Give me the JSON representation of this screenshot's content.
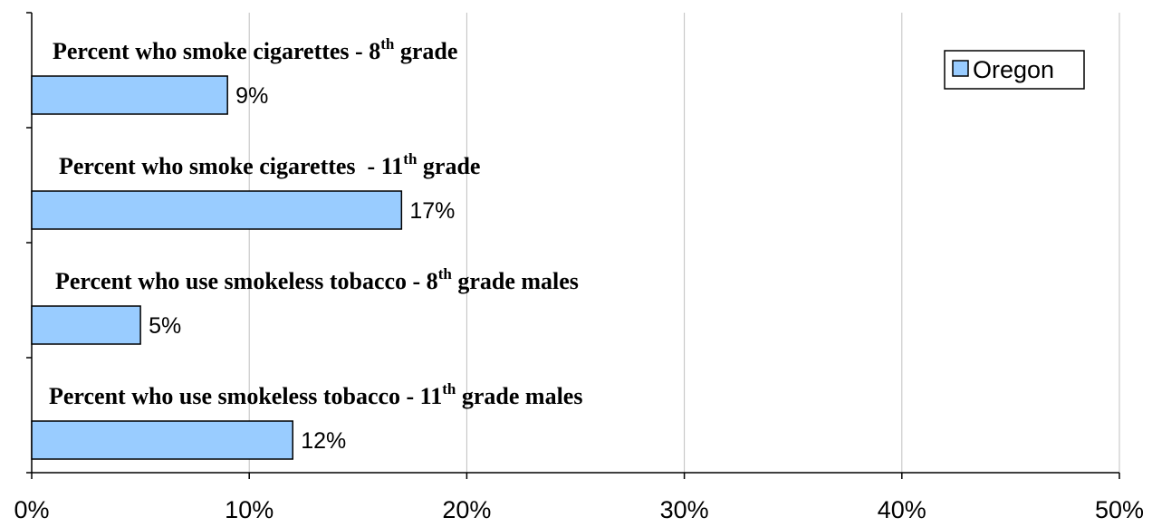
{
  "chart_data": {
    "type": "bar",
    "orientation": "horizontal",
    "categories": [
      {
        "text": "Percent who smoke cigarettes - 8",
        "sup": "th",
        "tail": " grade"
      },
      {
        "text": "Percent who smoke cigarettes  - 11",
        "sup": "th",
        "tail": " grade"
      },
      {
        "text": "Percent who use smokeless tobacco - 8",
        "sup": "th",
        "tail": " grade males"
      },
      {
        "text": "Percent who use smokeless tobacco - 11",
        "sup": "th",
        "tail": " grade males"
      }
    ],
    "series": [
      {
        "name": "Oregon",
        "color": "#99ccff",
        "values": [
          9,
          17,
          5,
          12
        ],
        "value_labels": [
          "9%",
          "17%",
          "5%",
          "12%"
        ]
      }
    ],
    "xlim": [
      0,
      50
    ],
    "x_ticks": [
      0,
      10,
      20,
      30,
      40,
      50
    ],
    "x_tick_labels": [
      "0%",
      "10%",
      "20%",
      "30%",
      "40%",
      "50%"
    ],
    "grid": "vertical",
    "legend": "top-right",
    "title": "",
    "xlabel": "",
    "ylabel": ""
  }
}
